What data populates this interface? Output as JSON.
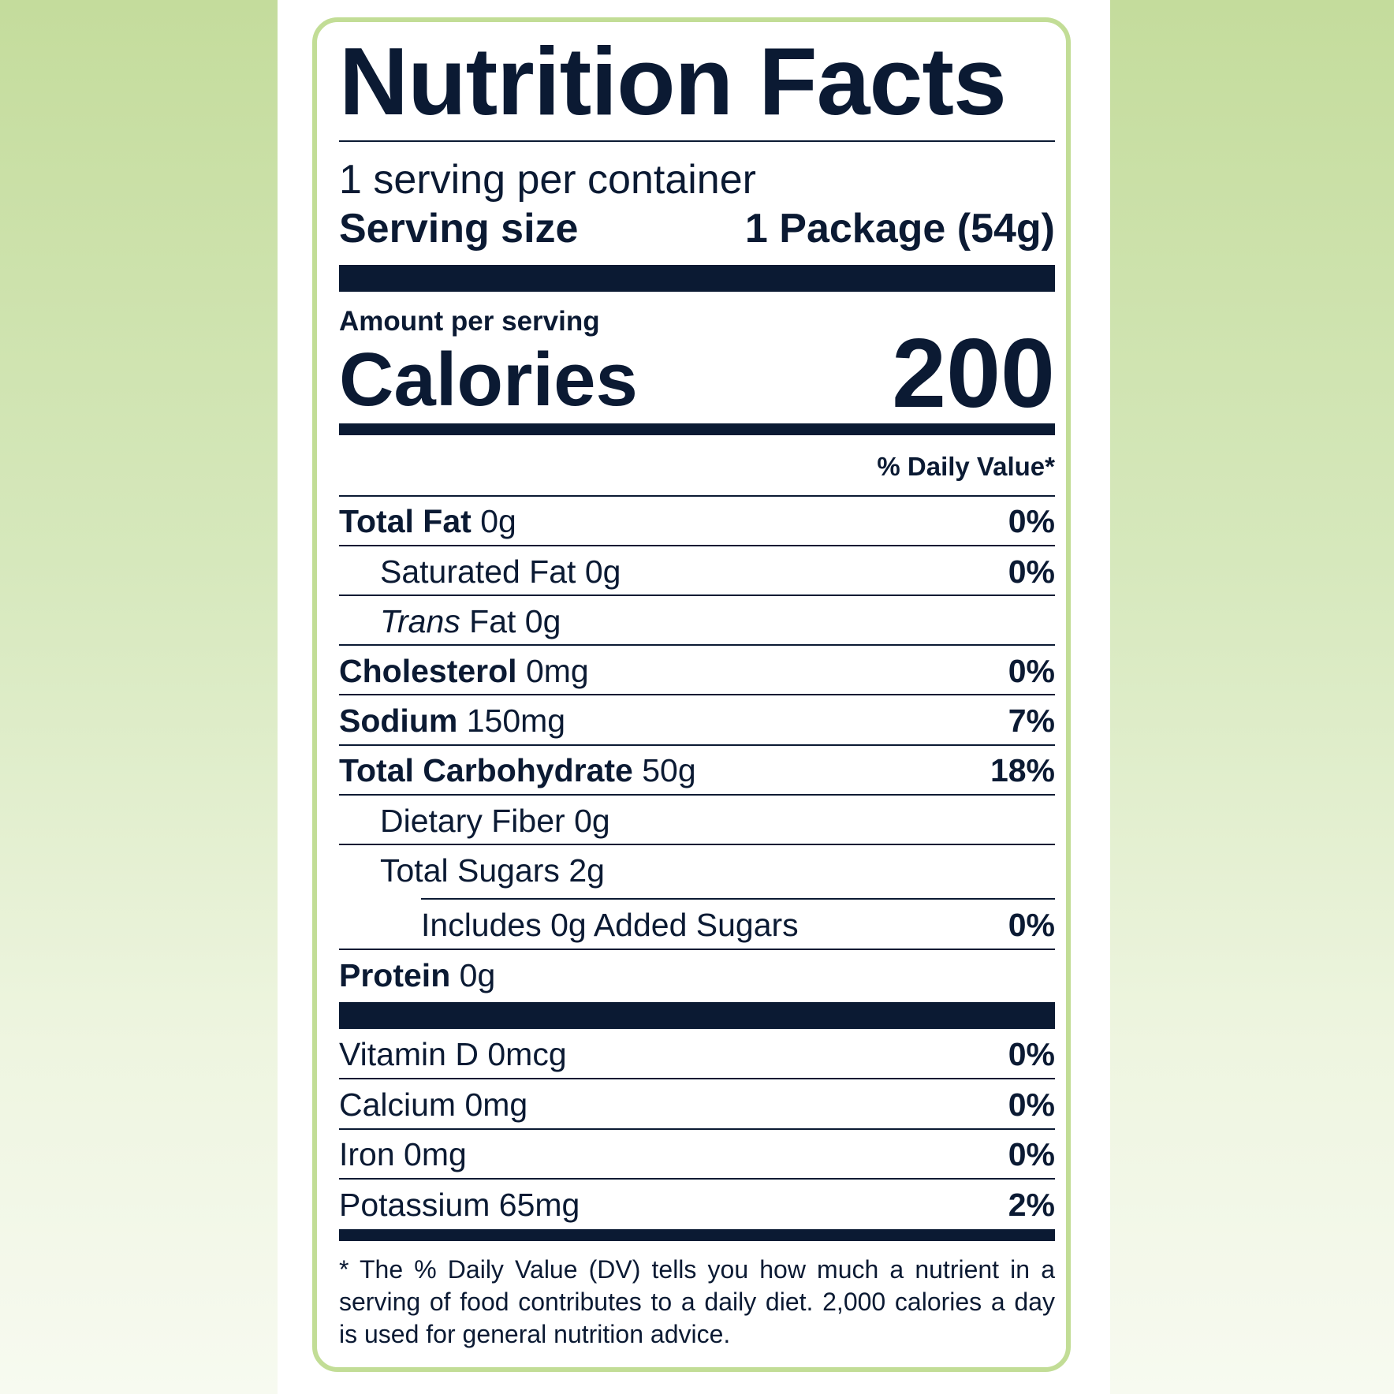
{
  "title": "Nutrition Facts",
  "servings_per_container": "1 serving per container",
  "serving_size": {
    "label": "Serving size",
    "value": "1 Package (54g)"
  },
  "amount_per_serving": "Amount per serving",
  "calories": {
    "label": "Calories",
    "value": "200"
  },
  "daily_value_header": "% Daily Value*",
  "nutrients": [
    {
      "name": "Total Fat",
      "amount": "0g",
      "dv": "0%"
    },
    {
      "name": "Saturated Fat",
      "amount": "0g",
      "dv": "0%"
    },
    {
      "name": "Trans",
      "suffix": "Fat 0g",
      "dv": ""
    },
    {
      "name": "Cholesterol",
      "amount": "0mg",
      "dv": "0%"
    },
    {
      "name": "Sodium",
      "amount": "150mg",
      "dv": "7%"
    },
    {
      "name": "Total Carbohydrate",
      "amount": "50g",
      "dv": "18%"
    },
    {
      "name": "Dietary Fiber",
      "amount": "0g",
      "dv": ""
    },
    {
      "name": "Total Sugars",
      "amount": "2g",
      "dv": ""
    },
    {
      "name": "Includes 0g Added Sugars",
      "dv": "0%"
    },
    {
      "name": "Protein",
      "amount": "0g",
      "dv": ""
    }
  ],
  "vitamins": [
    {
      "name": "Vitamin D 0mcg",
      "dv": "0%"
    },
    {
      "name": "Calcium 0mg",
      "dv": "0%"
    },
    {
      "name": "Iron 0mg",
      "dv": "0%"
    },
    {
      "name": "Potassium 65mg",
      "dv": "2%"
    }
  ],
  "footnote": "* The % Daily Value (DV) tells you how much a nutrient in a serving of food contributes to a daily diet. 2,000 calories a day is used for general nutrition advice.",
  "colors": {
    "text": "#0b1a33",
    "border": "#c2dd96",
    "background_top": "#c4dc9c",
    "background_bottom": "#f7faf0"
  }
}
